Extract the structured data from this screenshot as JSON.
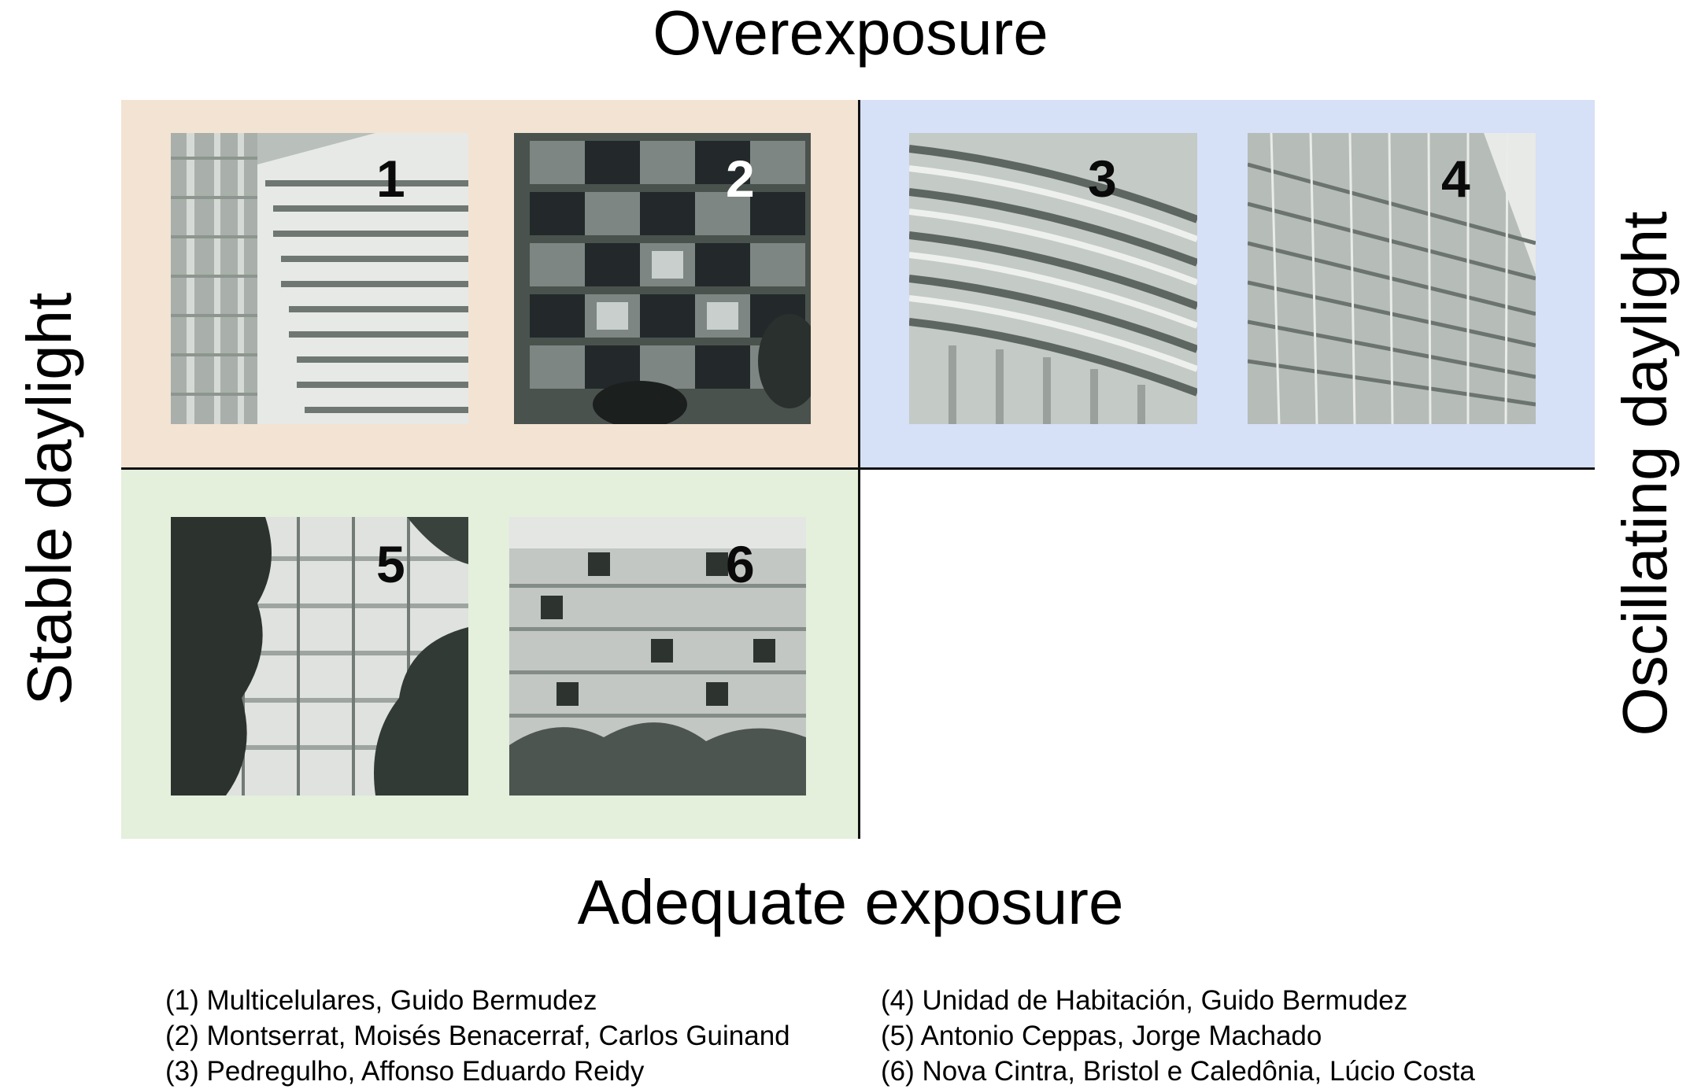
{
  "axes": {
    "top": "Overexposure",
    "bottom": "Adequate exposure",
    "left": "Stable daylight",
    "right": "Oscillating daylight"
  },
  "quadrant_colors": {
    "top_left": "#f3e3d3",
    "top_right": "#d6e0f7",
    "bottom_left": "#e4efdc"
  },
  "photos": [
    {
      "number": "1",
      "subject": "building-photo"
    },
    {
      "number": "2",
      "subject": "building-photo"
    },
    {
      "number": "3",
      "subject": "building-photo"
    },
    {
      "number": "4",
      "subject": "building-photo"
    },
    {
      "number": "5",
      "subject": "building-photo"
    },
    {
      "number": "6",
      "subject": "building-photo"
    }
  ],
  "legend": {
    "left": [
      "(1) Multicelulares, Guido Bermudez",
      "(2) Montserrat, Moisés Benacerraf, Carlos Guinand",
      "(3) Pedregulho, Affonso Eduardo Reidy"
    ],
    "right": [
      "(4) Unidad de Habitación, Guido Bermudez",
      "(5) Antonio Ceppas, Jorge Machado",
      "(6) Nova Cintra, Bristol e Caledônia, Lúcio Costa"
    ]
  }
}
